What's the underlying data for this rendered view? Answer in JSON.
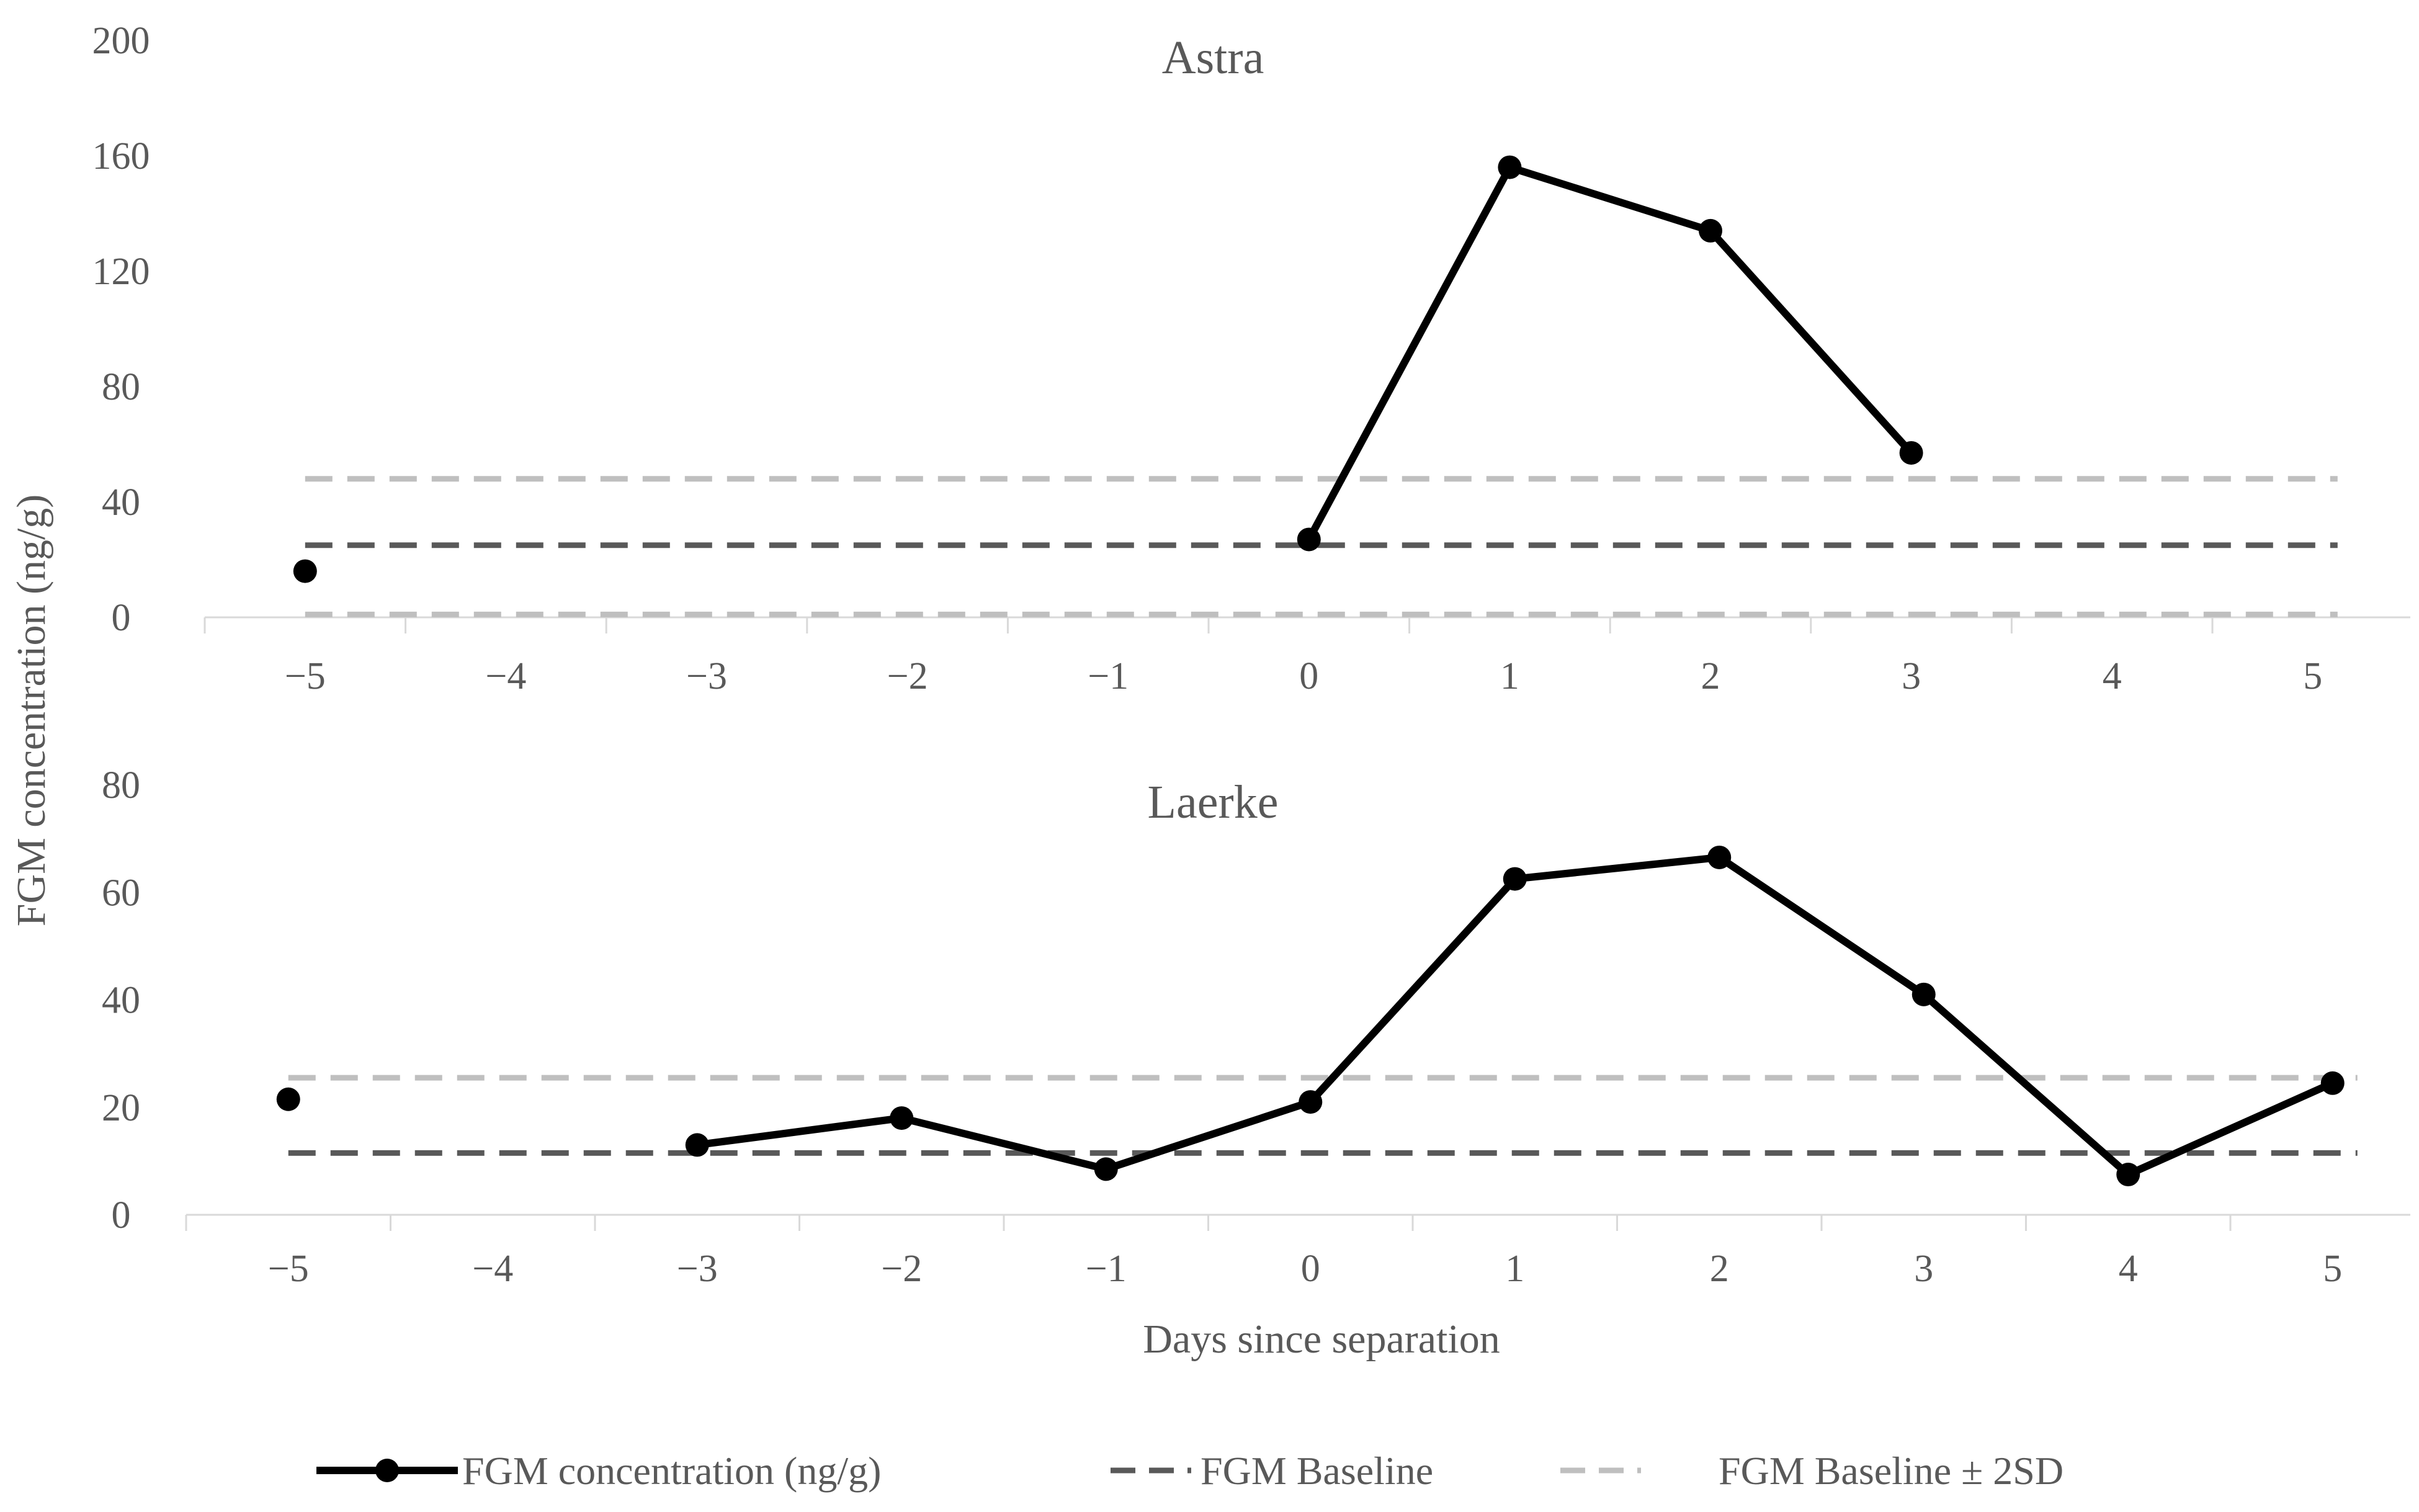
{
  "chart_data": {
    "type": "line",
    "xlabel": "Days since separation",
    "ylabel": "FGM concentration (ng/g)",
    "x": [
      -5,
      -4,
      -3,
      -2,
      -1,
      0,
      1,
      2,
      3,
      4,
      5
    ],
    "x_tick_labels": [
      "−5",
      "−4",
      "−3",
      "−2",
      "−1",
      "0",
      "1",
      "2",
      "3",
      "4",
      "5"
    ],
    "grid": false,
    "legend_position": "bottom",
    "legend": [
      {
        "label": "FGM concentration (ng/g)",
        "style": "solid-marker",
        "color": "#000000"
      },
      {
        "label": "FGM Baseline",
        "style": "dashed",
        "color": "#595959"
      },
      {
        "label": "FGM Baseline ± 2SD",
        "style": "dashed",
        "color": "#bfbfbf"
      }
    ],
    "panels": [
      {
        "title": "Astra",
        "ylim": [
          0,
          200
        ],
        "yticks": [
          0,
          40,
          80,
          120,
          160,
          200
        ],
        "series": [
          {
            "name": "FGM concentration (ng/g)",
            "values": [
              16,
              null,
              null,
              null,
              null,
              27,
              156,
              134,
              57,
              null,
              null
            ]
          }
        ],
        "baseline": 25,
        "baseline_band": [
          1,
          48
        ]
      },
      {
        "title": "Laerke",
        "ylim": [
          0,
          80
        ],
        "yticks": [
          0,
          20,
          40,
          60,
          80
        ],
        "series": [
          {
            "name": "FGM concentration (ng/g)",
            "values": [
              21.5,
              null,
              13,
              18,
              8.5,
              21,
              62.5,
              66.5,
              41,
              7.5,
              24.5
            ]
          }
        ],
        "baseline": 11.5,
        "baseline_band": [
          null,
          25.5
        ]
      }
    ]
  },
  "colors": {
    "series": "#000000",
    "baseline": "#595959",
    "band": "#bfbfbf",
    "axis": "#d9d9d9",
    "text": "#595959"
  }
}
